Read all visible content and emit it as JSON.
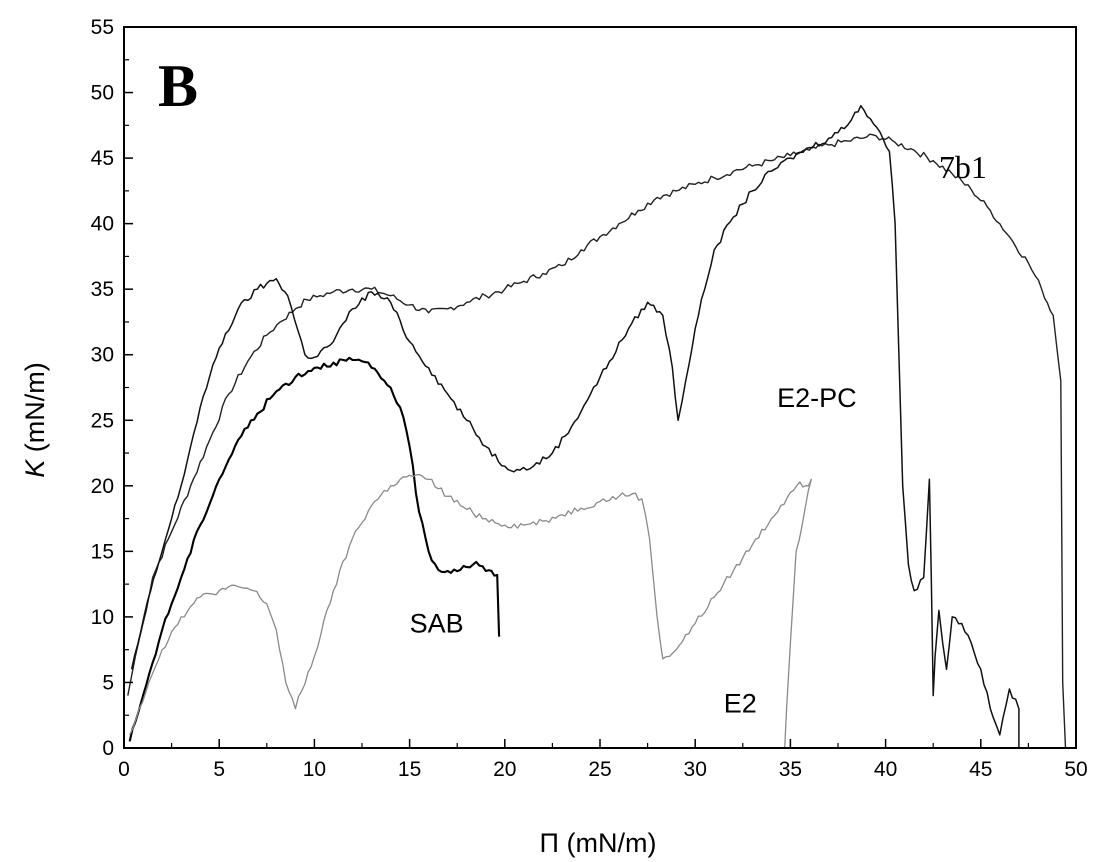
{
  "chart_data": {
    "type": "line",
    "panel_label": "B",
    "xlabel": "Π (mN/m)",
    "ylabel_italic": "K",
    "ylabel_rest": " (mN/m)",
    "xlim": [
      0,
      50
    ],
    "ylim": [
      0,
      55
    ],
    "xticks": [
      0,
      5,
      10,
      15,
      20,
      25,
      30,
      35,
      40,
      45,
      50
    ],
    "yticks": [
      0,
      5,
      10,
      15,
      20,
      25,
      30,
      35,
      40,
      45,
      50,
      55
    ],
    "grid": false,
    "series": [
      {
        "name": "7b1",
        "color": "#222222",
        "width": 1.4,
        "x": [
          0.2,
          0.6,
          1.0,
          1.5,
          2.5,
          3.5,
          4.5,
          5.5,
          6.5,
          7.5,
          8.2,
          9.0,
          9.6,
          10.3,
          11.0,
          12.0,
          13.0,
          14.0,
          15.0,
          16.0,
          17.0,
          18.0,
          19.0,
          20.0,
          21.0,
          22.0,
          23.0,
          24.0,
          25.0,
          26.0,
          27.0,
          28.0,
          29.0,
          30.0,
          31.0,
          32.0,
          33.0,
          34.0,
          35.0,
          36.0,
          37.0,
          38.0,
          39.0,
          39.5,
          40.5,
          41.5,
          42.5,
          43.5,
          44.5,
          45.5,
          46.5,
          47.5,
          48.2,
          48.8,
          49.2,
          49.3,
          49.45
        ],
        "values": [
          4.0,
          7.0,
          9.5,
          13.0,
          16.5,
          20.0,
          23.5,
          27.0,
          29.5,
          31.5,
          32.5,
          33.5,
          34.2,
          34.5,
          34.8,
          35.0,
          35.0,
          34.5,
          33.8,
          33.2,
          33.5,
          34.0,
          34.5,
          35.0,
          35.6,
          36.2,
          36.8,
          38.0,
          39.0,
          40.0,
          41.0,
          42.0,
          42.5,
          43.0,
          43.5,
          44.0,
          44.4,
          44.8,
          45.2,
          45.6,
          46.0,
          46.3,
          46.6,
          46.7,
          46.2,
          45.6,
          44.8,
          43.8,
          42.6,
          41.0,
          39.0,
          37.0,
          35.0,
          33.0,
          28.0,
          5.0,
          0.0
        ]
      },
      {
        "name": "E2-PC",
        "color": "#111111",
        "width": 1.5,
        "x": [
          0.4,
          0.9,
          1.4,
          2.0,
          2.5,
          3.0,
          3.5,
          4.0,
          5.0,
          6.0,
          7.0,
          8.0,
          8.6,
          9.5,
          10.0,
          11.0,
          12.0,
          13.0,
          14.0,
          15.0,
          16.0,
          17.0,
          18.0,
          19.0,
          20.0,
          20.8,
          21.5,
          22.5,
          23.5,
          24.5,
          25.5,
          26.5,
          27.5,
          28.3,
          28.8,
          29.1,
          29.5,
          30.0,
          30.5,
          31.0,
          32.0,
          33.0,
          34.0,
          35.0,
          36.0,
          37.0,
          38.0,
          38.4,
          38.7,
          39.2,
          39.7,
          40.2,
          40.5,
          40.7,
          40.9,
          41.2,
          41.5,
          42.0,
          42.3,
          42.4,
          42.5,
          42.6,
          42.8,
          43.0,
          43.2,
          43.5,
          44.0,
          44.5,
          45.0,
          45.5,
          46.0,
          46.5,
          47.0,
          47.0
        ],
        "values": [
          6.0,
          9.0,
          12.0,
          15.0,
          17.5,
          20.0,
          23.0,
          26.0,
          30.5,
          33.5,
          35.0,
          35.8,
          34.5,
          30.0,
          29.8,
          31.0,
          33.5,
          34.8,
          34.0,
          31.0,
          29.0,
          27.0,
          25.0,
          23.0,
          21.5,
          21.2,
          21.5,
          22.5,
          24.5,
          27.0,
          29.5,
          32.0,
          34.0,
          33.0,
          29.0,
          25.0,
          28.0,
          32.0,
          35.0,
          38.0,
          40.5,
          42.5,
          44.0,
          45.0,
          45.8,
          46.5,
          47.5,
          48.5,
          49.0,
          48.0,
          47.0,
          45.5,
          40.0,
          30.0,
          20.0,
          14.0,
          12.0,
          13.0,
          20.5,
          13.0,
          4.0,
          7.0,
          10.5,
          8.0,
          6.0,
          10.0,
          9.5,
          8.0,
          6.0,
          3.0,
          1.0,
          4.5,
          3.0,
          0.0
        ]
      },
      {
        "name": "SAB",
        "color": "#000000",
        "width": 2.1,
        "x": [
          0.3,
          0.6,
          1.0,
          1.5,
          2.0,
          2.5,
          3.0,
          4.0,
          5.0,
          6.0,
          7.0,
          8.0,
          9.0,
          10.0,
          11.0,
          12.0,
          12.5,
          13.0,
          14.0,
          14.5,
          15.0,
          15.5,
          16.0,
          16.5,
          17.0,
          18.0,
          18.5,
          19.0,
          19.6,
          19.7
        ],
        "values": [
          0.5,
          2.0,
          4.0,
          6.5,
          9.0,
          11.0,
          13.0,
          17.0,
          20.5,
          23.5,
          25.5,
          27.2,
          28.3,
          29.0,
          29.4,
          29.6,
          29.5,
          29.0,
          27.5,
          26.0,
          23.0,
          18.0,
          15.0,
          13.6,
          13.5,
          13.8,
          14.2,
          13.5,
          13.2,
          8.5
        ]
      },
      {
        "name": "E2",
        "color": "#8a8a8a",
        "width": 1.3,
        "x": [
          0.3,
          0.8,
          1.3,
          2.0,
          3.0,
          4.0,
          5.0,
          6.0,
          6.8,
          7.5,
          8.0,
          8.5,
          9.0,
          10.0,
          11.0,
          12.0,
          13.0,
          14.0,
          15.0,
          16.0,
          17.0,
          18.0,
          19.0,
          20.0,
          21.0,
          22.0,
          23.0,
          24.0,
          25.0,
          26.0,
          26.7,
          27.2,
          27.6,
          28.0,
          28.3,
          29.0,
          30.0,
          31.0,
          32.0,
          33.0,
          34.0,
          35.0,
          35.5,
          35.8,
          36.1,
          35.3,
          35.0,
          34.8,
          34.7
        ],
        "values": [
          1.0,
          3.0,
          5.0,
          7.5,
          10.0,
          11.5,
          12.0,
          12.3,
          12.0,
          11.0,
          9.0,
          5.0,
          3.0,
          7.0,
          12.0,
          16.0,
          18.5,
          20.0,
          20.8,
          20.5,
          19.2,
          18.2,
          17.5,
          17.0,
          17.0,
          17.3,
          17.8,
          18.3,
          18.8,
          19.2,
          19.4,
          19.0,
          16.0,
          10.0,
          6.8,
          7.5,
          9.5,
          11.5,
          13.5,
          15.5,
          17.5,
          19.5,
          20.3,
          20.0,
          20.5,
          15.0,
          8.0,
          3.0,
          0.0
        ]
      }
    ],
    "annotations": [
      {
        "text": "7b1",
        "x": 42.8,
        "y": 43.5,
        "style": "serif"
      },
      {
        "text": "E2-PC",
        "x": 34.3,
        "y": 26.0,
        "style": "sans"
      },
      {
        "text": "SAB",
        "x": 15.0,
        "y": 8.8,
        "style": "sans"
      },
      {
        "text": "E2",
        "x": 31.5,
        "y": 2.7,
        "style": "sans"
      }
    ]
  }
}
